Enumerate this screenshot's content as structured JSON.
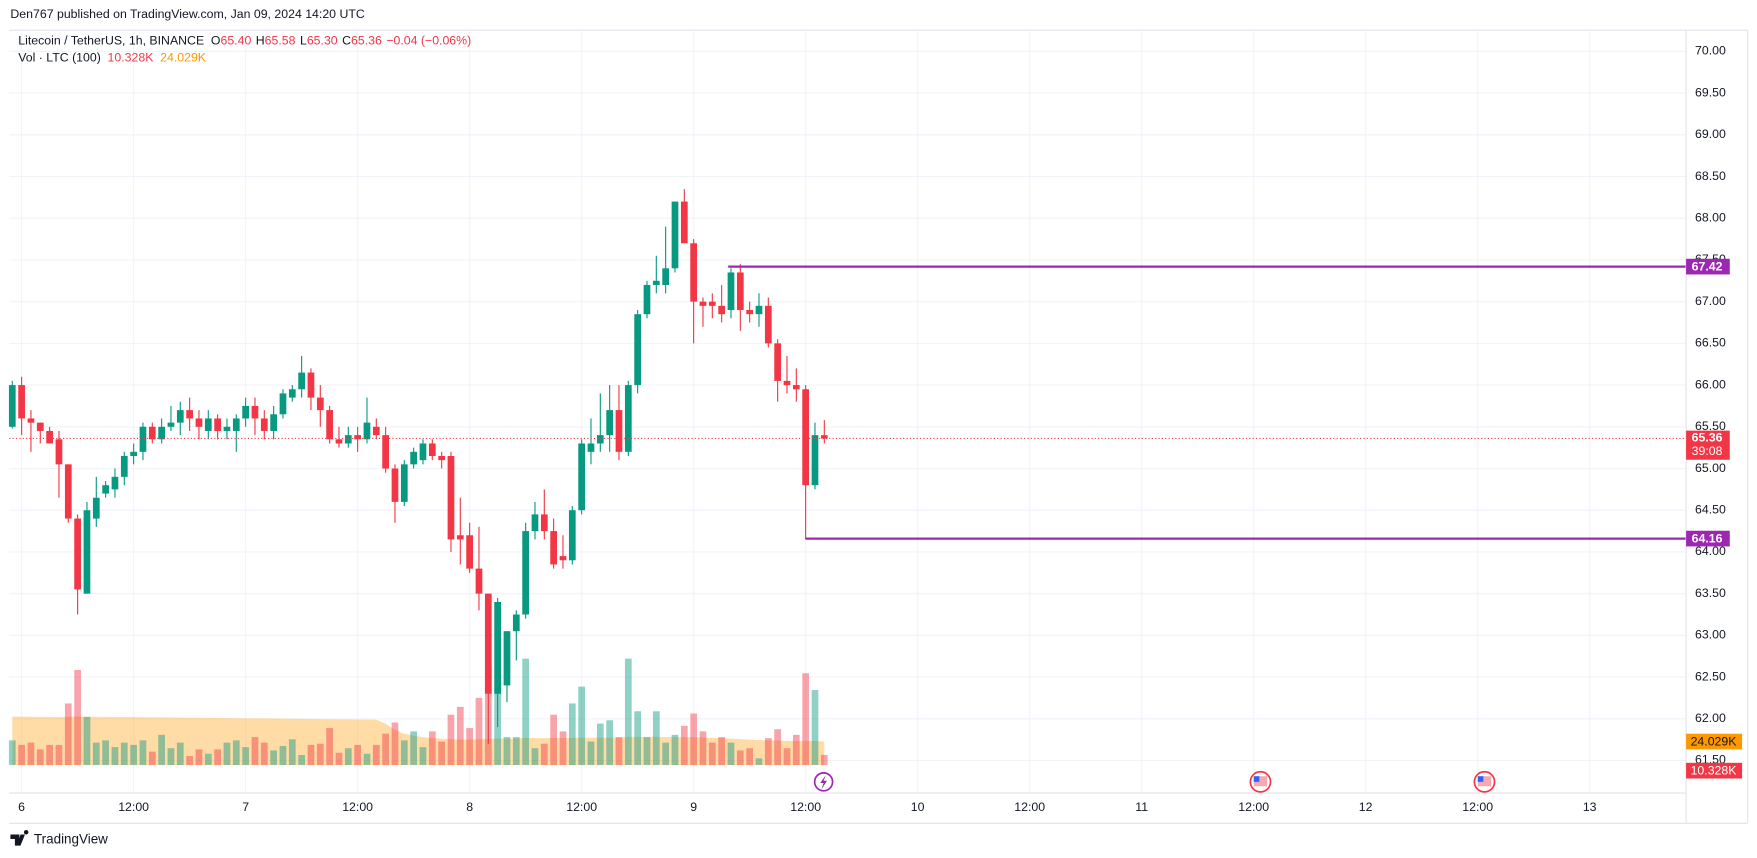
{
  "header": {
    "published": "Den767 published on TradingView.com, Jan 09, 2024 14:20 UTC",
    "brand": "TradingView"
  },
  "chart_data": {
    "type": "candlestick",
    "title": "Litecoin / TetherUS, 1h, BINANCE",
    "ohlc_legend": [
      {
        "label": "O",
        "value": "65.40"
      },
      {
        "label": "H",
        "value": "65.58"
      },
      {
        "label": "L",
        "value": "65.30"
      },
      {
        "label": "C",
        "value": "65.36"
      }
    ],
    "change": "−0.04 (−0.06%)",
    "up_color": "#089981",
    "down_color": "#f23645",
    "x": [
      -1,
      0,
      1,
      2,
      3,
      4,
      5,
      6,
      7,
      8,
      9,
      10,
      11,
      12,
      13,
      14,
      15,
      16,
      17,
      18,
      19,
      20,
      21,
      22,
      23,
      24,
      25,
      26,
      27,
      28,
      29,
      30,
      31,
      32,
      33,
      34,
      35,
      36,
      37,
      38,
      39,
      40,
      41,
      42,
      43,
      44,
      45,
      46,
      47,
      48,
      49,
      50,
      51,
      52,
      53,
      54,
      55,
      56,
      57,
      58,
      59,
      60,
      61,
      62,
      63,
      64,
      65,
      66,
      67,
      68,
      69,
      70,
      71,
      72,
      73,
      74,
      75,
      76,
      77,
      78,
      79,
      80,
      81,
      82,
      83,
      84,
      85,
      86
    ],
    "open": [
      65.5,
      66.0,
      65.6,
      65.55,
      65.45,
      65.35,
      65.05,
      64.4,
      63.5,
      64.4,
      64.7,
      64.75,
      64.9,
      65.15,
      65.2,
      65.5,
      65.35,
      65.5,
      65.55,
      65.7,
      65.6,
      65.45,
      65.6,
      65.45,
      65.45,
      65.6,
      65.75,
      65.6,
      65.45,
      65.65,
      65.85,
      65.95,
      66.15,
      65.85,
      65.7,
      65.35,
      65.3,
      65.4,
      65.35,
      65.5,
      65.4,
      65.0,
      64.6,
      65.05,
      65.1,
      65.3,
      65.15,
      65.15,
      64.2,
      64.2,
      63.8,
      63.5,
      62.3,
      62.4,
      63.05,
      63.25,
      64.25,
      64.45,
      64.25,
      63.95,
      63.9,
      64.5,
      65.2,
      65.3,
      65.4,
      65.7,
      65.2,
      66.0,
      66.85,
      67.2,
      67.2,
      67.4,
      68.2,
      67.7,
      67.0,
      67.0,
      66.95,
      66.9,
      67.35,
      66.9,
      66.85,
      66.95,
      66.5,
      66.05,
      66.0,
      65.95,
      64.8,
      65.4
    ],
    "high": [
      66.05,
      66.1,
      65.7,
      65.55,
      65.5,
      65.45,
      65.05,
      64.45,
      64.6,
      64.9,
      64.85,
      65.0,
      65.2,
      65.3,
      65.55,
      65.55,
      65.6,
      65.75,
      65.8,
      65.85,
      65.7,
      65.7,
      65.65,
      65.6,
      65.65,
      65.85,
      65.85,
      65.7,
      65.75,
      65.95,
      66.0,
      66.35,
      66.2,
      66.0,
      65.75,
      65.5,
      65.5,
      65.5,
      65.85,
      65.6,
      65.5,
      65.05,
      65.1,
      65.25,
      65.35,
      65.35,
      65.2,
      65.2,
      64.65,
      64.35,
      64.3,
      63.5,
      63.45,
      63.05,
      63.3,
      64.35,
      64.6,
      64.75,
      64.4,
      64.2,
      64.55,
      65.35,
      65.6,
      65.9,
      66.0,
      66.0,
      66.05,
      66.9,
      67.25,
      67.55,
      67.9,
      68.2,
      68.35,
      67.75,
      67.05,
      67.1,
      67.2,
      67.4,
      67.45,
      67.0,
      67.1,
      67.05,
      66.55,
      66.35,
      66.2,
      66.0,
      65.55,
      65.58
    ],
    "low": [
      65.48,
      65.4,
      65.2,
      65.3,
      65.3,
      64.65,
      64.35,
      63.25,
      63.5,
      64.3,
      64.65,
      64.65,
      64.8,
      65.05,
      65.1,
      65.3,
      65.3,
      65.45,
      65.4,
      65.45,
      65.35,
      65.35,
      65.35,
      65.35,
      65.2,
      65.5,
      65.4,
      65.35,
      65.35,
      65.6,
      65.8,
      65.85,
      65.7,
      65.5,
      65.3,
      65.25,
      65.25,
      65.2,
      65.3,
      65.35,
      64.95,
      64.35,
      64.55,
      65.0,
      65.05,
      65.1,
      65.0,
      64.0,
      63.85,
      63.75,
      63.3,
      61.7,
      61.9,
      62.2,
      62.7,
      63.2,
      64.15,
      64.15,
      63.8,
      63.8,
      63.85,
      64.45,
      65.05,
      65.2,
      65.2,
      65.1,
      65.15,
      65.9,
      66.8,
      67.1,
      67.1,
      67.35,
      67.7,
      66.5,
      66.7,
      66.8,
      66.75,
      66.8,
      66.65,
      66.75,
      66.7,
      66.45,
      65.8,
      65.9,
      65.8,
      64.15,
      64.75,
      65.3
    ],
    "close": [
      66.0,
      65.6,
      65.55,
      65.45,
      65.3,
      65.05,
      64.4,
      63.55,
      64.5,
      64.65,
      64.8,
      64.9,
      65.15,
      65.2,
      65.5,
      65.35,
      65.5,
      65.55,
      65.7,
      65.6,
      65.5,
      65.6,
      65.45,
      65.5,
      65.6,
      65.75,
      65.6,
      65.45,
      65.65,
      65.9,
      65.95,
      66.15,
      65.85,
      65.7,
      65.35,
      65.3,
      65.4,
      65.35,
      65.55,
      65.4,
      65.0,
      64.6,
      65.05,
      65.2,
      65.3,
      65.15,
      65.1,
      64.15,
      64.15,
      63.8,
      63.5,
      62.3,
      63.4,
      63.05,
      63.25,
      64.25,
      64.45,
      64.25,
      63.85,
      63.9,
      64.5,
      65.3,
      65.3,
      65.4,
      65.7,
      65.2,
      66.0,
      66.85,
      67.2,
      67.25,
      67.4,
      68.2,
      67.7,
      67.0,
      66.95,
      66.95,
      66.85,
      67.35,
      66.9,
      66.85,
      66.95,
      66.5,
      66.05,
      66.0,
      65.95,
      64.8,
      65.4,
      65.36
    ],
    "volume": {
      "name": "Vol · LTC (100)",
      "values": [
        25.2,
        20.6,
        22.9,
        16.0,
        20.6,
        20.6,
        63.0,
        97.3,
        49.2,
        22.9,
        25.2,
        18.3,
        22.9,
        20.6,
        25.2,
        13.7,
        30.9,
        17.2,
        22.9,
        9.2,
        16.0,
        11.5,
        16.0,
        22.9,
        25.2,
        18.3,
        28.6,
        22.9,
        14.9,
        19.5,
        26.3,
        10.3,
        20.6,
        21.8,
        37.8,
        12.6,
        17.2,
        20.6,
        11.5,
        20.6,
        32.1,
        43.5,
        25.2,
        34.4,
        18.3,
        34.4,
        24.0,
        51.5,
        59.5,
        37.8,
        68.7,
        99.6,
        80.2,
        28.6,
        28.6,
        108.8,
        17.2,
        21.8,
        51.5,
        34.4,
        63.0,
        80.2,
        24.0,
        42.4,
        45.8,
        28.6,
        108.8,
        55.0,
        28.6,
        55.0,
        22.9,
        30.9,
        40.1,
        52.7,
        34.4,
        22.9,
        28.6,
        22.9,
        14.9,
        17.2,
        6.9,
        27.5,
        36.6,
        17.2,
        30.9,
        93.9,
        76.7,
        10.328
      ],
      "ma": [
        49.5,
        49.5,
        49.4,
        49.3,
        49.2,
        49.2,
        49.4,
        49.6,
        49.5,
        49.4,
        49.3,
        49.2,
        49.1,
        49.0,
        48.9,
        48.8,
        48.7,
        48.6,
        48.5,
        48.4,
        48.3,
        48.2,
        48.1,
        48.0,
        47.9,
        47.8,
        47.7,
        47.6,
        47.5,
        47.4,
        47.3,
        47.2,
        47.1,
        47.0,
        46.9,
        46.8,
        46.7,
        46.6,
        46.5,
        46.4,
        42.0,
        36.0,
        32.0,
        30.0,
        28.5,
        27.5,
        27.0,
        26.5,
        26.0,
        26.0,
        26.2,
        26.8,
        27.0,
        27.0,
        27.2,
        27.8,
        27.6,
        27.5,
        27.6,
        27.5,
        27.8,
        28.2,
        28.0,
        28.0,
        28.1,
        28.0,
        28.8,
        29.0,
        28.8,
        28.9,
        28.7,
        28.6,
        28.5,
        28.6,
        28.2,
        27.8,
        27.5,
        27.0,
        26.5,
        26.0,
        25.5,
        25.2,
        25.0,
        24.8,
        24.6,
        24.8,
        24.5,
        24.029
      ],
      "last_label": "10.328K",
      "ma_label": "24.029K",
      "ma_color": "#ff9800",
      "lim": [
        0,
        110
      ]
    },
    "xlim": [
      -1.32,
      178.33
    ],
    "xticks": [
      {
        "value": 0,
        "label": "6"
      },
      {
        "value": 12,
        "label": "12:00"
      },
      {
        "value": 24,
        "label": "7"
      },
      {
        "value": 36,
        "label": "12:00"
      },
      {
        "value": 48,
        "label": "8"
      },
      {
        "value": 60,
        "label": "12:00"
      },
      {
        "value": 72,
        "label": "9"
      },
      {
        "value": 84,
        "label": "12:00"
      },
      {
        "value": 96,
        "label": "10"
      },
      {
        "value": 108,
        "label": "12:00"
      },
      {
        "value": 120,
        "label": "11"
      },
      {
        "value": 132,
        "label": "12:00"
      },
      {
        "value": 144,
        "label": "12"
      },
      {
        "value": 156,
        "label": "12:00"
      },
      {
        "value": 168,
        "label": "13"
      }
    ],
    "ylim": [
      61.11,
      70.24
    ],
    "yticks": [
      {
        "value": 61.5,
        "label": "61.50"
      },
      {
        "value": 62,
        "label": "62.00"
      },
      {
        "value": 62.5,
        "label": "62.50"
      },
      {
        "value": 63,
        "label": "63.00"
      },
      {
        "value": 63.5,
        "label": "63.50"
      },
      {
        "value": 64,
        "label": "64.00"
      },
      {
        "value": 64.5,
        "label": "64.50"
      },
      {
        "value": 65,
        "label": "65.00"
      },
      {
        "value": 65.5,
        "label": "65.50"
      },
      {
        "value": 66,
        "label": "66.00"
      },
      {
        "value": 66.5,
        "label": "66.50"
      },
      {
        "value": 67,
        "label": "67.00"
      },
      {
        "value": 67.5,
        "label": "67.50"
      },
      {
        "value": 68,
        "label": "68.00"
      },
      {
        "value": 68.5,
        "label": "68.50"
      },
      {
        "value": 69,
        "label": "69.00"
      },
      {
        "value": 69.5,
        "label": "69.50"
      },
      {
        "value": 70,
        "label": "70.00"
      }
    ],
    "last_price": 65.36,
    "countdown": "39:08",
    "levels": [
      {
        "value": 67.42,
        "start": 75.7,
        "color": "#9c27b0"
      },
      {
        "value": 64.16,
        "start": 84,
        "color": "#9c27b0"
      }
    ],
    "grid": true
  }
}
